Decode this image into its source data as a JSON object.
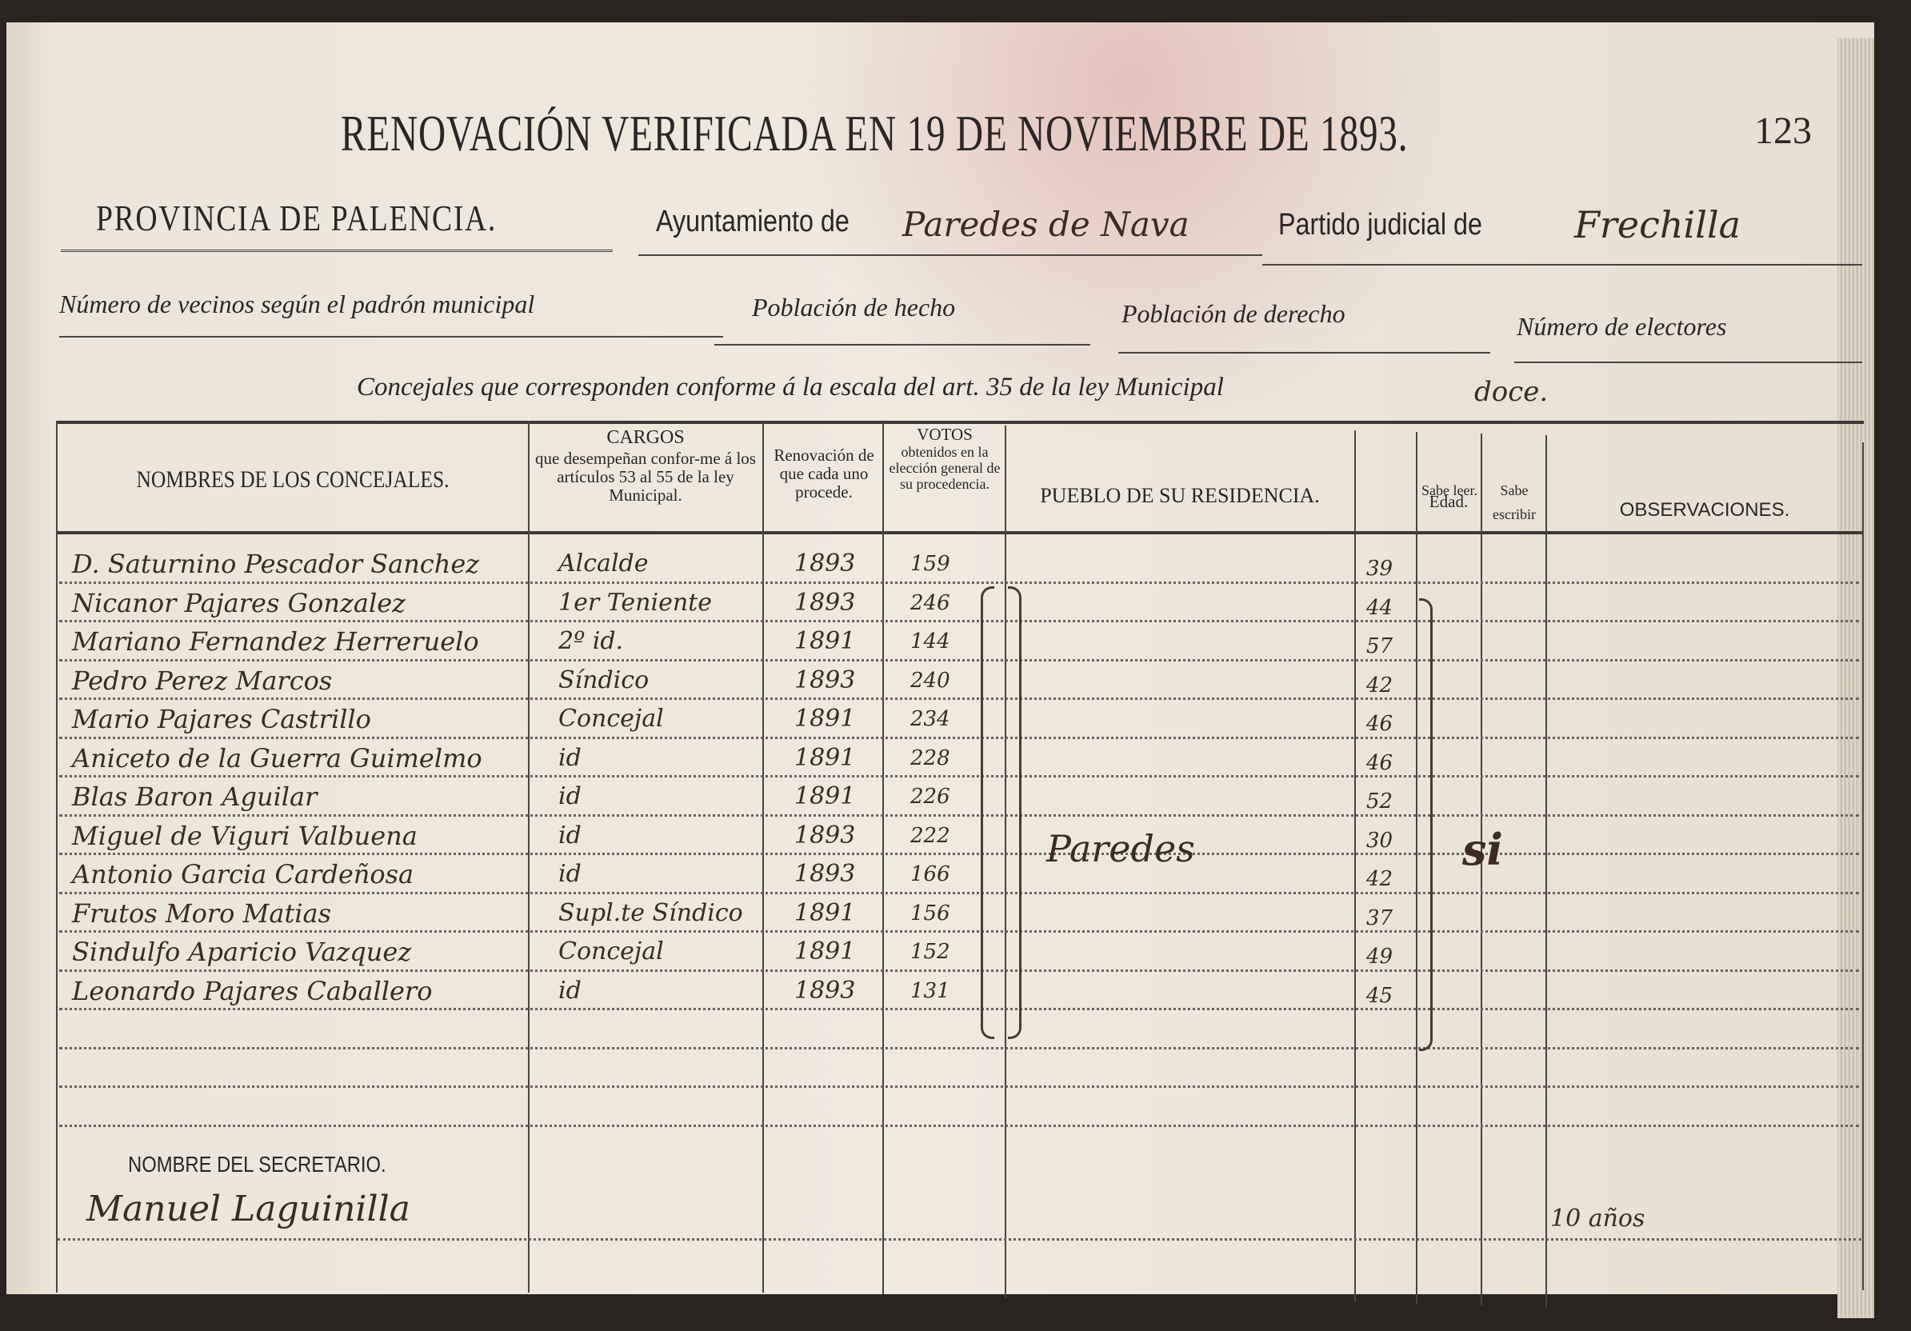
{
  "header": {
    "title": "RENOVACIÓN VERIFICADA EN 19 DE NOVIEMBRE DE 1893.",
    "page_number": "123",
    "provincia": "PROVINCIA DE PALENCIA.",
    "ayuntamiento_label": "Ayuntamiento de",
    "ayuntamiento_value": "Paredes de Nava",
    "partido_label": "Partido judicial de",
    "partido_value": "Frechilla",
    "vecinos_label": "Número de vecinos según el padrón municipal",
    "hecho_label": "Población de hecho",
    "derecho_label": "Población de derecho",
    "electores_label": "Número de electores",
    "concejales_text": "Concejales que corresponden conforme á la escala del art. 35 de la ley Municipal",
    "concejales_value": "doce."
  },
  "table": {
    "headers": {
      "nombres": "NOMBRES DE LOS CONCEJALES.",
      "cargos_title": "CARGOS",
      "cargos_sub": "que desempeñan confor-me á los artículos 53 al 55 de la ley Municipal.",
      "renovacion": "Renovación de que cada uno procede.",
      "votos_title": "VOTOS",
      "votos_sub": "obtenidos en la elección general de su procedencia.",
      "pueblo": "PUEBLO DE SU RESIDENCIA.",
      "edad": "Edad.",
      "sabe_leer": "Sabe leer.",
      "sabe_escribir": "Sabe escribir",
      "observaciones": "OBSERVACIONES."
    },
    "rows": [
      {
        "nombre": "D. Saturnino Pescador Sanchez",
        "cargo": "Alcalde",
        "renovacion": "1893",
        "votos": "159",
        "edad": "39"
      },
      {
        "nombre": "Nicanor Pajares Gonzalez",
        "cargo": "1er Teniente",
        "renovacion": "1893",
        "votos": "246",
        "edad": "44"
      },
      {
        "nombre": "Mariano Fernandez Herreruelo",
        "cargo": "2º id.",
        "renovacion": "1891",
        "votos": "144",
        "edad": "57"
      },
      {
        "nombre": "Pedro Perez Marcos",
        "cargo": "Síndico",
        "renovacion": "1893",
        "votos": "240",
        "edad": "42"
      },
      {
        "nombre": "Mario Pajares Castrillo",
        "cargo": "Concejal",
        "renovacion": "1891",
        "votos": "234",
        "edad": "46"
      },
      {
        "nombre": "Aniceto de la Guerra Guimelmo",
        "cargo": "id",
        "renovacion": "1891",
        "votos": "228",
        "edad": "46"
      },
      {
        "nombre": "Blas Baron Aguilar",
        "cargo": "id",
        "renovacion": "1891",
        "votos": "226",
        "edad": "52"
      },
      {
        "nombre": "Miguel de Viguri Valbuena",
        "cargo": "id",
        "renovacion": "1893",
        "votos": "222",
        "edad": "30"
      },
      {
        "nombre": "Antonio Garcia Cardeñosa",
        "cargo": "id",
        "renovacion": "1893",
        "votos": "166",
        "edad": "42"
      },
      {
        "nombre": "Frutos Moro Matias",
        "cargo": "Supl.te Síndico",
        "renovacion": "1891",
        "votos": "156",
        "edad": "37"
      },
      {
        "nombre": "Sindulfo Aparicio Vazquez",
        "cargo": "Concejal",
        "renovacion": "1891",
        "votos": "152",
        "edad": "49"
      },
      {
        "nombre": "Leonardo Pajares Caballero",
        "cargo": "id",
        "renovacion": "1893",
        "votos": "131",
        "edad": "45"
      }
    ],
    "pueblo_value": "Paredes",
    "sabe_value": "si"
  },
  "secretario": {
    "label": "NOMBRE DEL SECRETARIO.",
    "nombre": "Manuel Laguinilla",
    "observacion": "10 años"
  }
}
